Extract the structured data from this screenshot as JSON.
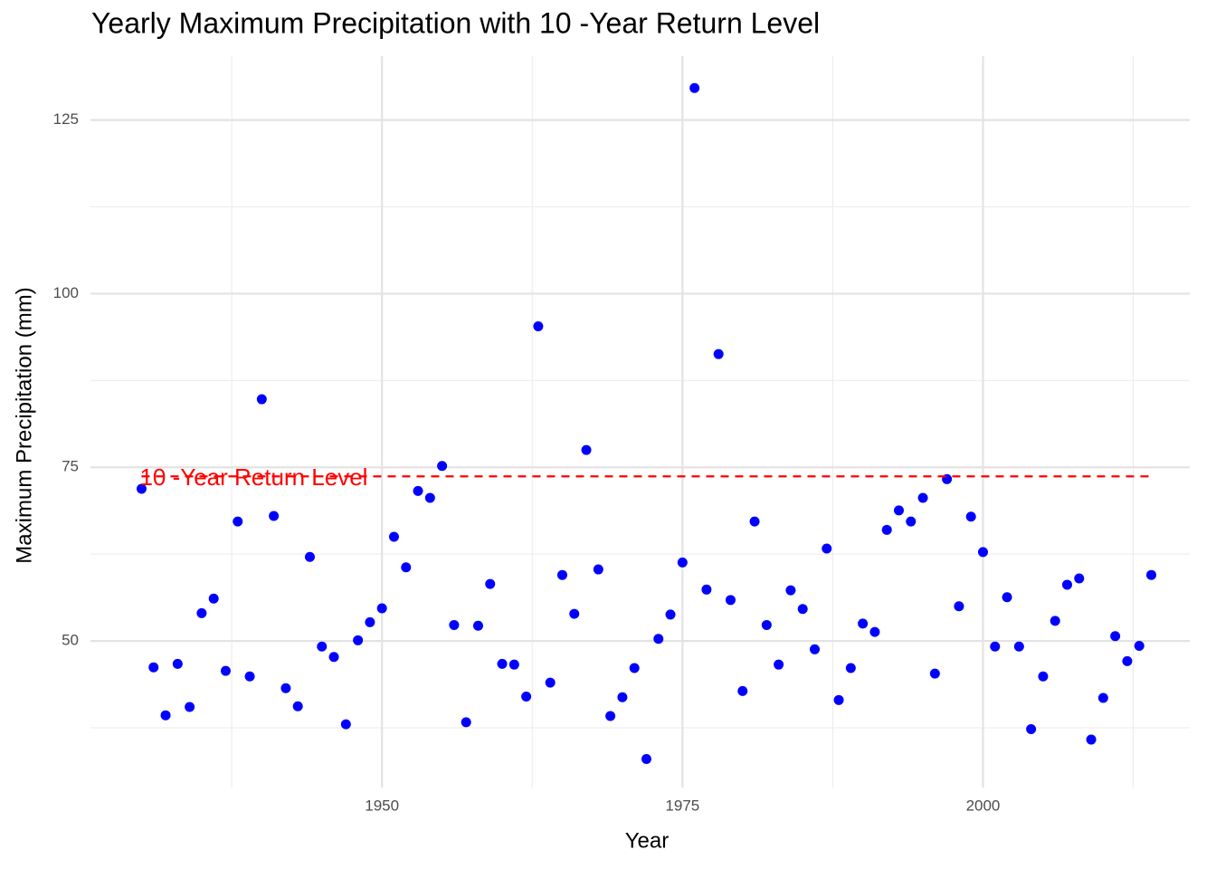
{
  "chart_data": {
    "type": "scatter",
    "title": "Yearly Maximum Precipitation with 10 -Year Return Level",
    "x_label": "Year",
    "y_label": "Maximum Precipitation (mm)",
    "x": [
      1930,
      1931,
      1932,
      1933,
      1934,
      1935,
      1936,
      1937,
      1938,
      1939,
      1940,
      1941,
      1942,
      1943,
      1944,
      1945,
      1946,
      1947,
      1948,
      1949,
      1950,
      1951,
      1952,
      1953,
      1954,
      1955,
      1956,
      1957,
      1958,
      1959,
      1960,
      1961,
      1962,
      1963,
      1964,
      1965,
      1966,
      1967,
      1968,
      1969,
      1970,
      1971,
      1972,
      1973,
      1974,
      1975,
      1976,
      1977,
      1978,
      1979,
      1980,
      1981,
      1982,
      1983,
      1984,
      1985,
      1986,
      1987,
      1988,
      1989,
      1990,
      1991,
      1992,
      1993,
      1994,
      1995,
      1996,
      1997,
      1998,
      1999,
      2000,
      2001,
      2002,
      2003,
      2004,
      2005,
      2006,
      2007,
      2008,
      2009,
      2010,
      2011,
      2012,
      2013,
      2014
    ],
    "values": [
      71.9,
      46.2,
      39.3,
      46.7,
      40.5,
      54.0,
      56.1,
      45.7,
      67.2,
      44.9,
      84.8,
      68.0,
      43.2,
      40.6,
      62.1,
      49.2,
      47.7,
      38.0,
      50.1,
      52.7,
      54.7,
      65.0,
      60.6,
      71.6,
      70.6,
      75.2,
      52.3,
      38.3,
      52.2,
      58.2,
      46.7,
      46.6,
      42.0,
      95.3,
      44.0,
      59.5,
      53.9,
      77.5,
      60.3,
      39.2,
      41.9,
      46.1,
      33.0,
      50.3,
      53.8,
      61.3,
      129.6,
      57.4,
      91.3,
      55.9,
      42.8,
      67.2,
      52.3,
      46.6,
      57.3,
      54.6,
      48.8,
      63.3,
      41.5,
      46.1,
      52.5,
      51.3,
      66.0,
      68.8,
      67.2,
      70.6,
      45.3,
      73.3,
      55.0,
      67.9,
      62.8,
      49.2,
      56.3,
      49.2,
      37.3,
      44.9,
      52.9,
      58.1,
      59.0,
      35.8,
      41.8,
      50.7,
      47.1,
      49.3,
      59.5
    ],
    "color": "blue",
    "return_level": {
      "value": 73.7,
      "label": "10 -Year Return Level",
      "color": "red"
    },
    "xlim": [
      1925.75,
      2017.2
    ],
    "ylim": [
      28.9,
      134.2
    ],
    "xticks": [
      1950,
      1975,
      2000
    ],
    "yticks": [
      50,
      75,
      100,
      125
    ],
    "x_minor_ticks": [
      1937.5,
      1962.5,
      1987.5,
      2012.5
    ],
    "y_minor_ticks": [
      37.5,
      62.5,
      87.5,
      112.5
    ],
    "grid": true
  }
}
